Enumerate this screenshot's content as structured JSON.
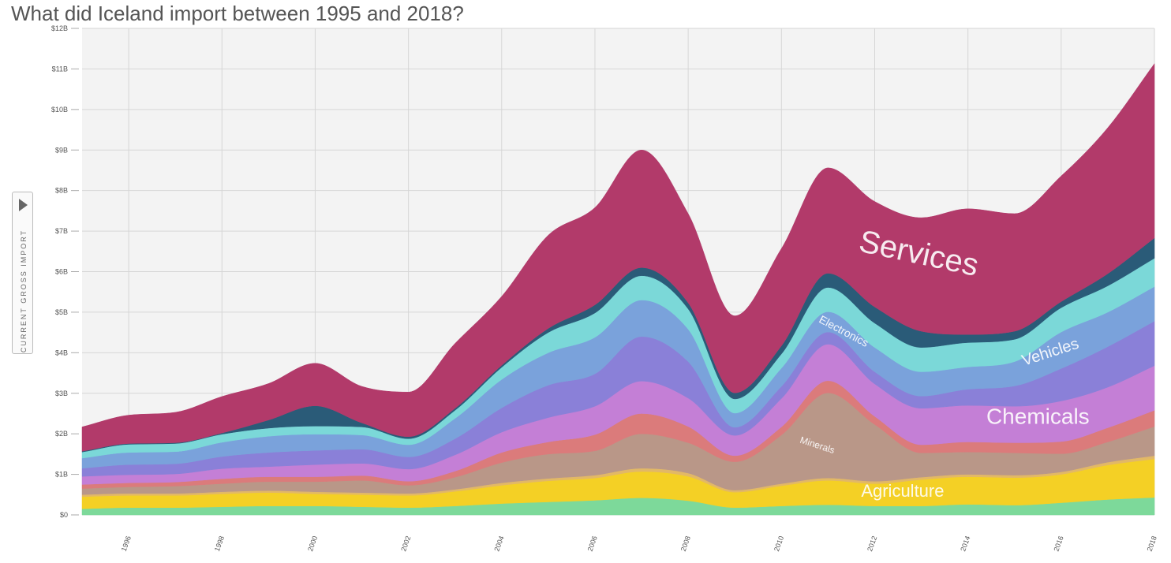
{
  "page": {
    "title": "What did Iceland import between 1995 and 2018?",
    "y_axis_button": "CURRENT GROSS IMPORT"
  },
  "chart_data": {
    "type": "area",
    "stacked": true,
    "title": "What did Iceland import between 1995 and 2018?",
    "ylabel": "CURRENT GROSS IMPORT",
    "xlabel": "",
    "x": [
      1995,
      1996,
      1997,
      1998,
      1999,
      2000,
      2001,
      2002,
      2003,
      2004,
      2005,
      2006,
      2007,
      2008,
      2009,
      2010,
      2011,
      2012,
      2013,
      2014,
      2015,
      2016,
      2017,
      2018
    ],
    "xlim": [
      1995,
      2018
    ],
    "ylim": [
      0,
      12
    ],
    "y_unit": "billions USD",
    "grid": true,
    "x_ticks": [
      "1996",
      "1998",
      "2000",
      "2002",
      "2004",
      "2006",
      "2008",
      "2010",
      "2012",
      "2014",
      "2016",
      "2018"
    ],
    "y_ticks": [
      "$0",
      "$1B",
      "$2B",
      "$3B",
      "$4B",
      "$5B",
      "$6B",
      "$7B",
      "$8B",
      "$9B",
      "$10B",
      "$11B",
      "$12B"
    ],
    "series": [
      {
        "color": "#7dd99a",
        "values": [
          0.15,
          0.18,
          0.18,
          0.2,
          0.22,
          0.22,
          0.2,
          0.18,
          0.22,
          0.28,
          0.32,
          0.36,
          0.42,
          0.35,
          0.18,
          0.22,
          0.25,
          0.22,
          0.22,
          0.26,
          0.24,
          0.3,
          0.38,
          0.43
        ]
      },
      {
        "color": "#f4d025",
        "values": [
          0.3,
          0.3,
          0.3,
          0.32,
          0.33,
          0.3,
          0.3,
          0.3,
          0.36,
          0.45,
          0.52,
          0.55,
          0.65,
          0.6,
          0.38,
          0.5,
          0.6,
          0.55,
          0.65,
          0.68,
          0.68,
          0.7,
          0.85,
          0.95
        ]
      },
      {
        "color": "#e2b866",
        "values": [
          0.05,
          0.05,
          0.05,
          0.05,
          0.05,
          0.05,
          0.05,
          0.05,
          0.05,
          0.06,
          0.06,
          0.07,
          0.08,
          0.08,
          0.05,
          0.05,
          0.06,
          0.06,
          0.06,
          0.06,
          0.06,
          0.06,
          0.07,
          0.08
        ]
      },
      {
        "color": "#b99788",
        "values": [
          0.15,
          0.16,
          0.18,
          0.2,
          0.22,
          0.25,
          0.3,
          0.2,
          0.3,
          0.5,
          0.6,
          0.6,
          0.85,
          0.75,
          0.7,
          1.2,
          2.1,
          1.4,
          0.6,
          0.55,
          0.55,
          0.45,
          0.5,
          0.72
        ]
      },
      {
        "color": "#db7b7b",
        "values": [
          0.1,
          0.1,
          0.1,
          0.12,
          0.12,
          0.12,
          0.12,
          0.1,
          0.15,
          0.25,
          0.3,
          0.4,
          0.5,
          0.4,
          0.15,
          0.2,
          0.3,
          0.2,
          0.2,
          0.25,
          0.25,
          0.3,
          0.35,
          0.4
        ]
      },
      {
        "color": "#c47fd6",
        "values": [
          0.2,
          0.2,
          0.2,
          0.25,
          0.25,
          0.3,
          0.3,
          0.3,
          0.4,
          0.5,
          0.6,
          0.7,
          0.8,
          0.7,
          0.5,
          0.7,
          0.9,
          0.8,
          0.9,
          0.9,
          0.9,
          1.0,
          1.0,
          1.1
        ]
      },
      {
        "color": "#8a80d8",
        "values": [
          0.2,
          0.25,
          0.25,
          0.3,
          0.35,
          0.35,
          0.35,
          0.3,
          0.4,
          0.6,
          0.8,
          0.8,
          1.1,
          0.9,
          0.2,
          0.3,
          0.3,
          0.3,
          0.3,
          0.4,
          0.5,
          0.8,
          1.0,
          1.1
        ]
      },
      {
        "color": "#7aa2db",
        "values": [
          0.25,
          0.3,
          0.3,
          0.35,
          0.4,
          0.4,
          0.35,
          0.3,
          0.5,
          0.7,
          0.8,
          0.9,
          0.9,
          0.8,
          0.35,
          0.45,
          0.5,
          0.6,
          0.6,
          0.55,
          0.6,
          0.9,
          0.85,
          0.85
        ]
      },
      {
        "color": "#7bd8d8",
        "values": [
          0.15,
          0.2,
          0.2,
          0.2,
          0.2,
          0.2,
          0.2,
          0.15,
          0.2,
          0.3,
          0.5,
          0.6,
          0.6,
          0.5,
          0.35,
          0.35,
          0.6,
          0.6,
          0.6,
          0.6,
          0.55,
          0.6,
          0.65,
          0.7
        ]
      },
      {
        "color": "#2a5b78",
        "values": [
          0.02,
          0.02,
          0.02,
          0.03,
          0.2,
          0.5,
          0.1,
          0.05,
          0.05,
          0.05,
          0.1,
          0.2,
          0.2,
          0.15,
          0.15,
          0.2,
          0.35,
          0.4,
          0.4,
          0.2,
          0.2,
          0.15,
          0.3,
          0.5
        ]
      },
      {
        "color": "#b23a6a",
        "values": [
          0.6,
          0.7,
          0.75,
          0.9,
          0.9,
          1.05,
          0.9,
          1.1,
          1.6,
          1.7,
          2.3,
          2.4,
          2.9,
          2.2,
          1.9,
          2.4,
          2.6,
          2.6,
          2.8,
          3.1,
          2.9,
          3.1,
          3.6,
          4.3
        ]
      }
    ],
    "annotations": [
      {
        "text": "Services",
        "x": 2012.9,
        "y": 6.2,
        "size": 40,
        "rotate": 12
      },
      {
        "text": "Electronics",
        "x": 2011.3,
        "y": 4.45,
        "size": 14,
        "rotate": 28
      },
      {
        "text": "Vehicles",
        "x": 2015.8,
        "y": 3.9,
        "size": 20,
        "rotate": -18
      },
      {
        "text": "Chemicals",
        "x": 2015.5,
        "y": 2.25,
        "size": 28,
        "rotate": 0
      },
      {
        "text": "Minerals",
        "x": 2010.75,
        "y": 1.65,
        "size": 12,
        "rotate": 18
      },
      {
        "text": "Agriculture",
        "x": 2012.6,
        "y": 0.45,
        "size": 22,
        "rotate": 0
      }
    ]
  }
}
